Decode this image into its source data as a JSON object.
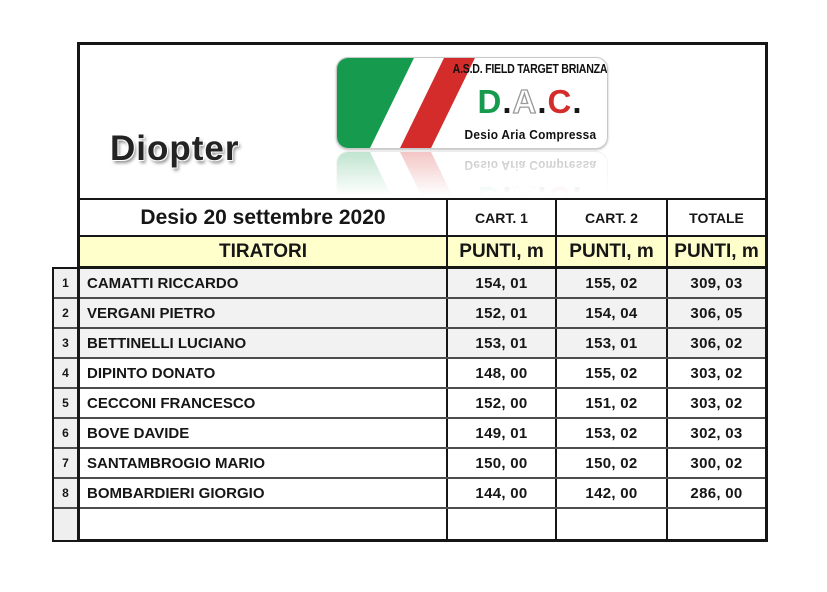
{
  "branding": {
    "category": "Diopter",
    "logo": {
      "line1": "A.S.D. FIELD TARGET BRIANZA",
      "acronym": {
        "d": "D",
        "dot1": ".",
        "a": "A",
        "dot2": ".",
        "c": "C",
        "dot3": "."
      },
      "line3": "Desio Aria Compressa",
      "colors": {
        "flag_green": "#169b4e",
        "flag_red": "#d42b2b"
      }
    }
  },
  "table": {
    "event_title": "Desio 20 settembre 2020",
    "columns": {
      "cart1": "CART. 1",
      "cart2": "CART. 2",
      "total": "TOTALE"
    },
    "shooters_header": "TIRATORI",
    "points_header": "PUNTI, m",
    "highlight_color": "#ffffcc",
    "rows": [
      {
        "rank": "1",
        "name": "CAMATTI RICCARDO",
        "cart1": "154, 01",
        "cart2": "155, 02",
        "total": "309, 03"
      },
      {
        "rank": "2",
        "name": "VERGANI PIETRO",
        "cart1": "152, 01",
        "cart2": "154, 04",
        "total": "306, 05"
      },
      {
        "rank": "3",
        "name": "BETTINELLI LUCIANO",
        "cart1": "153, 01",
        "cart2": "153, 01",
        "total": "306, 02"
      },
      {
        "rank": "4",
        "name": "DIPINTO DONATO",
        "cart1": "148, 00",
        "cart2": "155, 02",
        "total": "303, 02"
      },
      {
        "rank": "5",
        "name": "CECCONI FRANCESCO",
        "cart1": "152, 00",
        "cart2": "151, 02",
        "total": "303, 02"
      },
      {
        "rank": "6",
        "name": "BOVE DAVIDE",
        "cart1": "149, 01",
        "cart2": "153, 02",
        "total": "302, 03"
      },
      {
        "rank": "7",
        "name": "SANTAMBROGIO MARIO",
        "cart1": "150, 00",
        "cart2": "150, 02",
        "total": "300, 02"
      },
      {
        "rank": "8",
        "name": "BOMBARDIERI GIORGIO",
        "cart1": "144, 00",
        "cart2": "142, 00",
        "total": "286, 00"
      }
    ]
  }
}
